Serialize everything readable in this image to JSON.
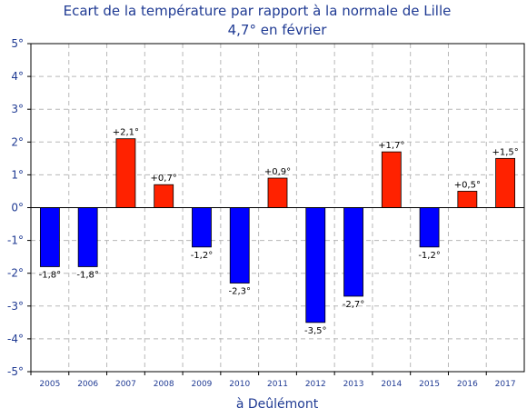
{
  "chart_data": {
    "type": "bar",
    "title": "Ecart de la température par rapport à la normale de Lille",
    "subtitle": "4,7° en février",
    "xlabel": "à Deûlémont",
    "ylabel": "",
    "ylim": [
      -5,
      5
    ],
    "yticks": [
      "-5°",
      "-4°",
      "-3°",
      "-2°",
      "-1°",
      "0°",
      "1°",
      "2°",
      "3°",
      "4°",
      "5°"
    ],
    "ytick_values": [
      -5,
      -4,
      -3,
      -2,
      -1,
      0,
      1,
      2,
      3,
      4,
      5
    ],
    "categories": [
      "2005",
      "2006",
      "2007",
      "2008",
      "2009",
      "2010",
      "2011",
      "2012",
      "2013",
      "2014",
      "2015",
      "2016",
      "2017"
    ],
    "values": [
      -1.8,
      -1.8,
      2.1,
      0.7,
      -1.2,
      -2.3,
      0.9,
      -3.5,
      -2.7,
      1.7,
      -1.2,
      0.5,
      1.5
    ],
    "data_labels": [
      "-1,8°",
      "-1,8°",
      "+2,1°",
      "+0,7°",
      "-1,2°",
      "-2,3°",
      "+0,9°",
      "-3,5°",
      "-2,7°",
      "+1,7°",
      "-1,2°",
      "+0,5°",
      "+1,5°"
    ],
    "colors": {
      "positive": "#ff2200",
      "negative": "#0000ff",
      "text": "#1f3a93",
      "grid": "#b8b8b8"
    },
    "grid": true,
    "legend": "none"
  }
}
